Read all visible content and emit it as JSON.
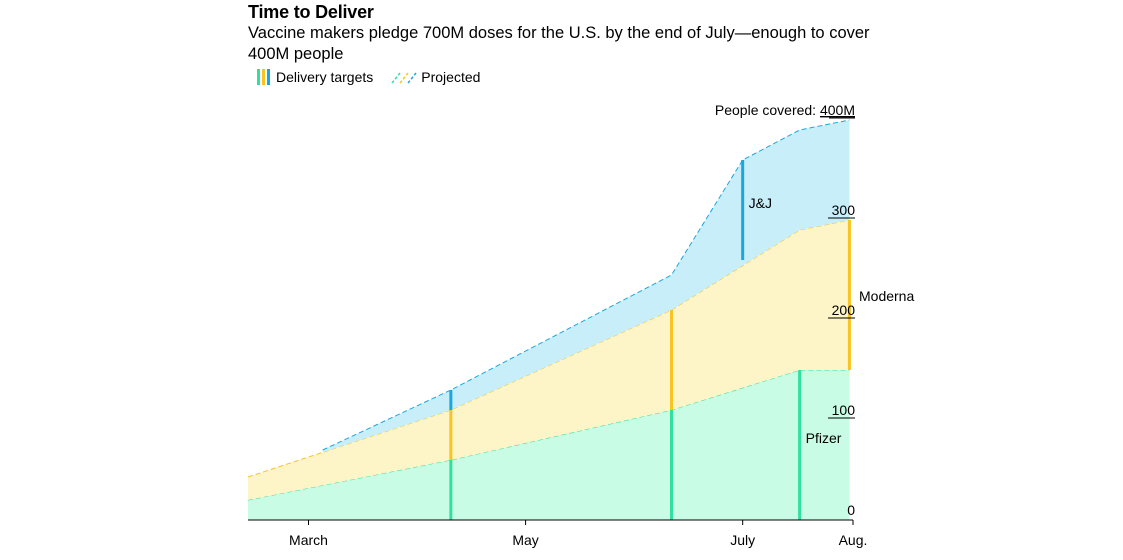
{
  "header": {
    "title": "Time to Deliver",
    "subtitle": "Vaccine makers pledge 700M doses for the U.S. by the end of July—enough to cover 400M people"
  },
  "legend": {
    "targets_label": "Delivery targets",
    "projected_label": "Projected"
  },
  "colors": {
    "pfizer_fill": "#c9fce4",
    "pfizer_line": "#2fe0a0",
    "moderna_fill": "#fdf4c8",
    "moderna_line": "#f7c423",
    "jj_fill": "#c8eefa",
    "jj_line": "#1aa7e0"
  },
  "chart_data": {
    "type": "area",
    "title": "Time to Deliver",
    "x_unit": "days since Feb 1, 2021",
    "xlim": [
      11,
      181
    ],
    "ylim": [
      0,
      400
    ],
    "x_ticks": [
      {
        "label": "March",
        "x": 28
      },
      {
        "label": "May",
        "x": 89
      },
      {
        "label": "July",
        "x": 150
      },
      {
        "label": "Aug.",
        "x": 181
      }
    ],
    "y_ticks": [
      {
        "label": "0",
        "value": 0
      },
      {
        "label": "100",
        "value": 100
      },
      {
        "label": "200",
        "value": 200
      },
      {
        "label": "300",
        "value": 300
      },
      {
        "label": "People covered: ",
        "value_label": "400M",
        "value": 400
      }
    ],
    "series": [
      {
        "name": "Pfizer",
        "key": "pfizer",
        "x": [
          11,
          68,
          130,
          166,
          180
        ],
        "cumulative": [
          20,
          60,
          110,
          150,
          150
        ]
      },
      {
        "name": "Moderna",
        "key": "moderna",
        "x": [
          11,
          68,
          130,
          166,
          180
        ],
        "cumulative": [
          43,
          110,
          210,
          290,
          300
        ]
      },
      {
        "name": "J&J",
        "key": "jj",
        "x": [
          32,
          68,
          130,
          150,
          166,
          180
        ],
        "cumulative": [
          70,
          130,
          245,
          360,
          390,
          400
        ]
      }
    ],
    "delivery_targets": [
      {
        "series": "pfizer",
        "x": 68,
        "from": 0,
        "to": 60
      },
      {
        "series": "pfizer",
        "x": 130,
        "from": 0,
        "to": 110
      },
      {
        "series": "pfizer",
        "x": 166,
        "from": 0,
        "to": 150
      },
      {
        "series": "moderna",
        "x": 68,
        "from": 60,
        "to": 110
      },
      {
        "series": "moderna",
        "x": 130,
        "from": 110,
        "to": 210
      },
      {
        "series": "moderna",
        "x": 180,
        "from": 150,
        "to": 300
      },
      {
        "series": "jj",
        "x": 68,
        "from": 110,
        "to": 130
      },
      {
        "series": "jj",
        "x": 150,
        "from": 260,
        "to": 360
      }
    ],
    "annotations": [
      {
        "text": "J&J",
        "x": 150,
        "y": 317
      },
      {
        "text": "Moderna",
        "x": 181,
        "y": 224
      },
      {
        "text": "Pfizer",
        "x": 166,
        "y": 82
      }
    ]
  }
}
